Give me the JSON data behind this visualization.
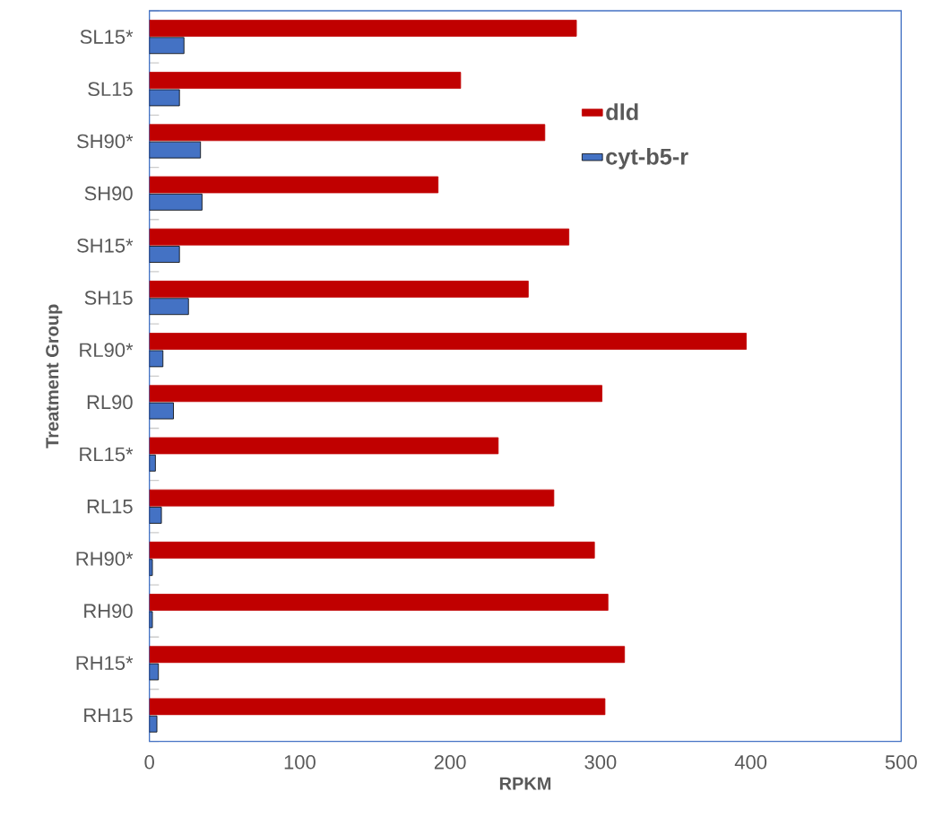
{
  "chart_data": {
    "type": "bar",
    "orientation": "horizontal",
    "xlabel": "RPKM",
    "ylabel": "Treatment Group",
    "categories": [
      "SL15*",
      "SL15",
      "SH90*",
      "SH90",
      "SH15*",
      "SH15",
      "RL90*",
      "RL90",
      "RL15*",
      "RL15",
      "RH90*",
      "RH90",
      "RH15*",
      "RH15"
    ],
    "series": [
      {
        "name": "dld",
        "color": "#c00000",
        "values": [
          284,
          207,
          263,
          192,
          279,
          252,
          397,
          301,
          232,
          269,
          296,
          305,
          316,
          303
        ]
      },
      {
        "name": "cyt-b5-r",
        "color": "#4472c4",
        "values": [
          23,
          20,
          34,
          35,
          20,
          26,
          9,
          16,
          4,
          8,
          2,
          2,
          6,
          5
        ]
      }
    ],
    "xlim": [
      0,
      500
    ],
    "xticks": [
      0,
      100,
      200,
      300,
      400,
      500
    ],
    "legend": "top right"
  }
}
